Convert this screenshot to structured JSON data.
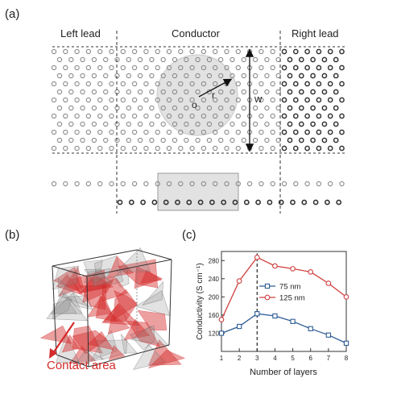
{
  "panel_a": {
    "label": "(a)",
    "regions": [
      "Left lead",
      "Conductor",
      "Right lead"
    ],
    "symbols": {
      "origin": "o",
      "radius": "r",
      "width": "w"
    }
  },
  "panel_b": {
    "label": "(b)",
    "annotation": "Contact area",
    "colors": {
      "red": "#d42a2a",
      "gray": "#8a8a8a"
    }
  },
  "panel_c": {
    "label": "(c)"
  },
  "chart_data": {
    "type": "line",
    "xlabel": "Number of layers",
    "ylabel": "Conductivity (S cm⁻¹)",
    "x": [
      1,
      2,
      3,
      4,
      5,
      6,
      7,
      8
    ],
    "xlim": [
      1,
      8
    ],
    "ylim": [
      80,
      300
    ],
    "yticks": [
      120,
      160,
      200,
      240,
      280
    ],
    "xticks": [
      1,
      2,
      3,
      4,
      5,
      6,
      7,
      8
    ],
    "legend_position": "center",
    "vline_x": 3,
    "series": [
      {
        "name": "75 nm",
        "marker": "square",
        "color": "#2f5d96",
        "values": [
          120,
          135,
          163,
          158,
          146,
          130,
          116,
          98
        ]
      },
      {
        "name": "125 nm",
        "marker": "circle",
        "color": "#d04040",
        "values": [
          150,
          235,
          287,
          268,
          262,
          255,
          230,
          200
        ]
      }
    ]
  }
}
